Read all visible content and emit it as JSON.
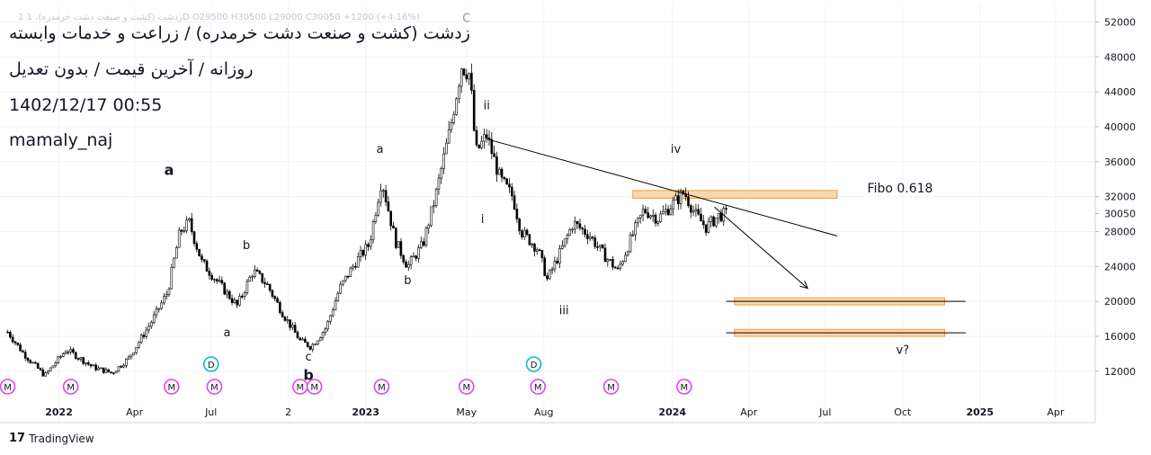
{
  "header": {
    "symbol_line": "1 زدشت (كشت و صنعت دشت خرمدره)، 1D  O29500  H30500  L29000  C30050  +1200 (+4.16%)",
    "title": "زدشت (کشت و صنعت دشت خرمدره) / زراعت و خدمات وابسته",
    "subtitle": "روزانه / آخرین قیمت / بدون تعدیل",
    "datetime": "1402/12/17 00:55",
    "author": "mamaly_naj"
  },
  "footer": {
    "brand": "TradingView"
  },
  "chart_data": {
    "type": "candlestick",
    "y_axis": {
      "scale": "linear",
      "range": [
        9000,
        54000
      ],
      "tick_labels": [
        "52000",
        "48000",
        "44000",
        "40000",
        "36000",
        "32000",
        "30050",
        "28000",
        "24000",
        "20000",
        "16000",
        "12000"
      ]
    },
    "x_axis": {
      "tick_labels": [
        "2022",
        "Apr",
        "Jul",
        "2",
        "2023",
        "May",
        "Aug",
        "2024",
        "Apr",
        "Jul",
        "Oct",
        "2025",
        "Apr"
      ]
    },
    "price_path": [
      [
        "2021-11-01",
        16500
      ],
      [
        "2021-11-20",
        14000
      ],
      [
        "2021-12-15",
        11500
      ],
      [
        "2022-01-10",
        14500
      ],
      [
        "2022-02-10",
        12500
      ],
      [
        "2022-03-05",
        11800
      ],
      [
        "2022-03-25",
        13500
      ],
      [
        "2022-04-20",
        17500
      ],
      [
        "2022-05-10",
        21000
      ],
      [
        "2022-05-25",
        28000
      ],
      [
        "2022-06-05",
        29000
      ],
      [
        "2022-06-20",
        24500
      ],
      [
        "2022-07-15",
        21500
      ],
      [
        "2022-08-01",
        19500
      ],
      [
        "2022-08-20",
        23500
      ],
      [
        "2022-09-05",
        22000
      ],
      [
        "2022-09-25",
        18500
      ],
      [
        "2022-10-15",
        15500
      ],
      [
        "2022-10-28",
        14800
      ],
      [
        "2022-11-15",
        17000
      ],
      [
        "2022-12-01",
        21500
      ],
      [
        "2022-12-20",
        24500
      ],
      [
        "2023-01-05",
        26500
      ],
      [
        "2023-01-20",
        34000
      ],
      [
        "2023-02-05",
        27000
      ],
      [
        "2023-02-20",
        24000
      ],
      [
        "2023-03-10",
        26500
      ],
      [
        "2023-03-25",
        32000
      ],
      [
        "2023-04-12",
        40000
      ],
      [
        "2023-04-25",
        47000
      ],
      [
        "2023-05-05",
        46000
      ],
      [
        "2023-05-12",
        37000
      ],
      [
        "2023-05-25",
        39000
      ],
      [
        "2023-06-10",
        34000
      ],
      [
        "2023-06-25",
        32000
      ],
      [
        "2023-07-05",
        28000
      ],
      [
        "2023-07-25",
        26000
      ],
      [
        "2023-08-05",
        22500
      ],
      [
        "2023-08-20",
        25500
      ],
      [
        "2023-09-05",
        29000
      ],
      [
        "2023-09-25",
        27500
      ],
      [
        "2023-10-10",
        25500
      ],
      [
        "2023-10-28",
        23500
      ],
      [
        "2023-11-12",
        27000
      ],
      [
        "2023-11-28",
        30500
      ],
      [
        "2023-12-15",
        29500
      ],
      [
        "2024-01-05",
        31500
      ],
      [
        "2024-01-15",
        32500
      ],
      [
        "2024-01-28",
        30000
      ],
      [
        "2024-02-10",
        28500
      ],
      [
        "2024-02-25",
        29800
      ],
      [
        "2024-03-07",
        30050
      ]
    ],
    "ohlc_last": {
      "open": 29500,
      "high": 30500,
      "low": 29000,
      "close": 30050,
      "change": 1200,
      "change_pct": 4.16
    },
    "price_label": 30050,
    "annotations": [
      {
        "text": "a",
        "x": "2022-05-12",
        "y": 34500,
        "bold": true
      },
      {
        "text": "b",
        "x": "2022-08-12",
        "y": 26000
      },
      {
        "text": "a",
        "x": "2022-07-20",
        "y": 16000
      },
      {
        "text": "c",
        "x": "2022-10-25",
        "y": 13200
      },
      {
        "text": "b",
        "x": "2022-10-25",
        "y": 11000,
        "bold": true
      },
      {
        "text": "a",
        "x": "2023-01-18",
        "y": 37000
      },
      {
        "text": "b",
        "x": "2023-02-20",
        "y": 22000
      },
      {
        "text": "C",
        "x": "2023-05-01",
        "y": 52000
      },
      {
        "text": "ii",
        "x": "2023-05-25",
        "y": 42000
      },
      {
        "text": "i",
        "x": "2023-05-20",
        "y": 29000
      },
      {
        "text": "iii",
        "x": "2023-08-25",
        "y": 18500
      },
      {
        "text": "iv",
        "x": "2024-01-05",
        "y": 37000
      },
      {
        "text": "v?",
        "x": "2024-10-01",
        "y": 14000
      },
      {
        "text": "Fibo 0.618",
        "x": "2024-08-20",
        "y": 32500
      }
    ],
    "trendline": {
      "from": [
        "2023-05-25",
        38600
      ],
      "to": [
        "2024-07-15",
        27500
      ]
    },
    "forecast_arrow": {
      "from": [
        "2024-02-20",
        30800
      ],
      "to": [
        "2024-06-10",
        21500
      ]
    },
    "zones": [
      {
        "x0": "2023-11-15",
        "x1": "2024-07-15",
        "y0": 31800,
        "y1": 32700
      },
      {
        "x0": "2024-03-15",
        "x1": "2024-11-20",
        "y0": 19600,
        "y1": 20400
      },
      {
        "x0": "2024-03-15",
        "x1": "2024-11-20",
        "y0": 16000,
        "y1": 16800
      }
    ],
    "horizontal_lines": [
      {
        "x0": "2024-03-05",
        "x1": "2024-12-15",
        "y": 20000
      },
      {
        "x0": "2024-03-05",
        "x1": "2024-12-15",
        "y": 16400
      }
    ],
    "event_markers": [
      {
        "label": "M",
        "x": "2021-11-01"
      },
      {
        "label": "M",
        "x": "2022-01-15"
      },
      {
        "label": "M",
        "x": "2022-05-15"
      },
      {
        "label": "M",
        "x": "2022-07-05"
      },
      {
        "label": "D",
        "x": "2022-07-01",
        "row": "upper"
      },
      {
        "label": "M",
        "x": "2022-10-15"
      },
      {
        "label": "M",
        "x": "2022-11-01"
      },
      {
        "label": "M",
        "x": "2023-01-20"
      },
      {
        "label": "M",
        "x": "2023-05-01"
      },
      {
        "label": "D",
        "x": "2023-07-20",
        "row": "upper"
      },
      {
        "label": "M",
        "x": "2023-07-25"
      },
      {
        "label": "M",
        "x": "2023-10-20"
      },
      {
        "label": "M",
        "x": "2024-01-15"
      }
    ]
  }
}
